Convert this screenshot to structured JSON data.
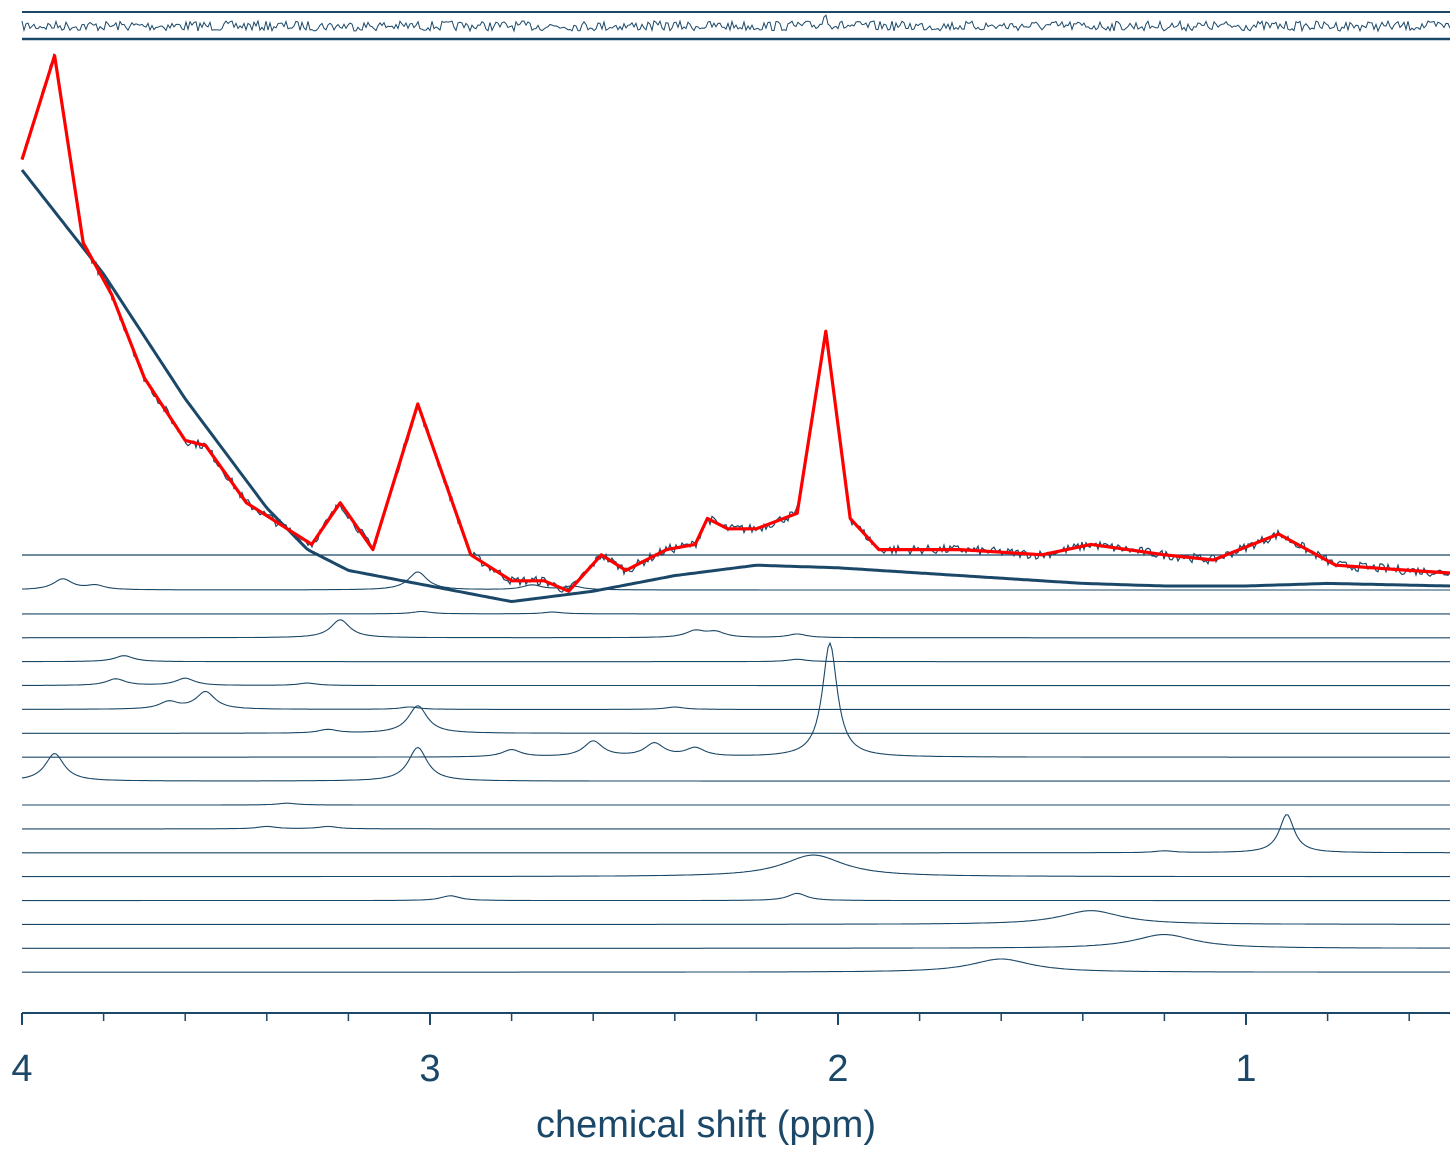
{
  "chart_data": {
    "type": "line",
    "title": "",
    "xlabel": "chemical shift (ppm)",
    "ylabel": "",
    "x_axis": {
      "reversed": true,
      "xlim": [
        4.0,
        0.5
      ],
      "major_ticks": [
        4,
        3,
        2,
        1
      ],
      "major_tick_labels": [
        "4",
        "3",
        "2",
        "1"
      ],
      "minor_ticks": [
        3.8,
        3.6,
        3.4,
        3.2,
        2.8,
        2.6,
        2.4,
        2.2,
        1.8,
        1.6,
        1.4,
        1.2,
        0.8,
        0.6
      ]
    },
    "grid": false,
    "legend": "none",
    "colors": {
      "fit": "#ff0000",
      "data": "#1b4868",
      "baseline": "#1b4868",
      "components": "#1b4868",
      "text": "#1b4868"
    },
    "residual_panel": {
      "description_visible": false,
      "peaks": [
        {
          "ppm": 2.03,
          "height": 0.6
        }
      ]
    },
    "main_panel": {
      "baseline": {
        "points": [
          [
            4.0,
            1.0
          ],
          [
            3.8,
            0.8
          ],
          [
            3.6,
            0.56
          ],
          [
            3.4,
            0.35
          ],
          [
            3.3,
            0.27
          ],
          [
            3.2,
            0.23
          ],
          [
            3.0,
            0.2
          ],
          [
            2.8,
            0.17
          ],
          [
            2.6,
            0.19
          ],
          [
            2.4,
            0.22
          ],
          [
            2.2,
            0.24
          ],
          [
            2.0,
            0.235
          ],
          [
            1.8,
            0.225
          ],
          [
            1.6,
            0.215
          ],
          [
            1.4,
            0.205
          ],
          [
            1.2,
            0.2
          ],
          [
            1.0,
            0.2
          ],
          [
            0.8,
            0.205
          ],
          [
            0.5,
            0.2
          ]
        ]
      },
      "fit": {
        "points": [
          [
            4.0,
            1.02
          ],
          [
            3.92,
            1.22
          ],
          [
            3.85,
            0.86
          ],
          [
            3.78,
            0.76
          ],
          [
            3.7,
            0.6
          ],
          [
            3.6,
            0.48
          ],
          [
            3.55,
            0.47
          ],
          [
            3.45,
            0.36
          ],
          [
            3.35,
            0.31
          ],
          [
            3.29,
            0.28
          ],
          [
            3.22,
            0.36
          ],
          [
            3.14,
            0.27
          ],
          [
            3.03,
            0.55
          ],
          [
            2.9,
            0.26
          ],
          [
            2.8,
            0.21
          ],
          [
            2.72,
            0.21
          ],
          [
            2.66,
            0.19
          ],
          [
            2.58,
            0.26
          ],
          [
            2.52,
            0.23
          ],
          [
            2.42,
            0.27
          ],
          [
            2.35,
            0.28
          ],
          [
            2.32,
            0.33
          ],
          [
            2.27,
            0.31
          ],
          [
            2.2,
            0.31
          ],
          [
            2.1,
            0.34
          ],
          [
            2.03,
            0.69
          ],
          [
            1.97,
            0.33
          ],
          [
            1.9,
            0.27
          ],
          [
            1.7,
            0.27
          ],
          [
            1.5,
            0.26
          ],
          [
            1.38,
            0.28
          ],
          [
            1.2,
            0.26
          ],
          [
            1.08,
            0.25
          ],
          [
            0.92,
            0.3
          ],
          [
            0.78,
            0.24
          ],
          [
            0.6,
            0.23
          ],
          [
            0.5,
            0.225
          ]
        ]
      }
    },
    "component_series": [
      {
        "peaks": [
          {
            "ppm": 3.9,
            "height": 0.9
          },
          {
            "ppm": 3.82,
            "height": 0.35
          },
          {
            "ppm": 3.03,
            "height": 1.5
          },
          {
            "ppm": 2.75,
            "height": 0.4
          },
          {
            "ppm": 2.65,
            "height": 0.3
          }
        ]
      },
      {
        "peaks": [
          {
            "ppm": 3.02,
            "height": 0.2
          },
          {
            "ppm": 2.7,
            "height": 0.15
          }
        ]
      },
      {
        "peaks": [
          {
            "ppm": 3.22,
            "height": 1.5
          },
          {
            "ppm": 2.35,
            "height": 0.55
          },
          {
            "ppm": 2.3,
            "height": 0.45
          },
          {
            "ppm": 2.1,
            "height": 0.3
          }
        ]
      },
      {
        "peaks": [
          {
            "ppm": 3.75,
            "height": 0.5
          },
          {
            "ppm": 2.1,
            "height": 0.2
          }
        ]
      },
      {
        "peaks": [
          {
            "ppm": 3.77,
            "height": 0.55
          },
          {
            "ppm": 3.6,
            "height": 0.6
          },
          {
            "ppm": 3.3,
            "height": 0.2
          }
        ]
      },
      {
        "peaks": [
          {
            "ppm": 3.55,
            "height": 1.45
          },
          {
            "ppm": 3.64,
            "height": 0.6
          },
          {
            "ppm": 3.05,
            "height": 0.2
          },
          {
            "ppm": 2.4,
            "height": 0.2
          }
        ]
      },
      {
        "peaks": [
          {
            "ppm": 3.03,
            "height": 2.3
          },
          {
            "ppm": 3.25,
            "height": 0.3
          }
        ]
      },
      {
        "peaks": [
          {
            "ppm": 2.02,
            "height": 9.5
          },
          {
            "ppm": 2.6,
            "height": 1.3
          },
          {
            "ppm": 2.45,
            "height": 1.1
          },
          {
            "ppm": 2.35,
            "height": 0.7
          },
          {
            "ppm": 2.8,
            "height": 0.6
          }
        ]
      },
      {
        "peaks": [
          {
            "ppm": 3.92,
            "height": 2.3
          },
          {
            "ppm": 3.03,
            "height": 2.8
          }
        ]
      },
      {
        "peaks": [
          {
            "ppm": 3.35,
            "height": 0.15
          }
        ]
      },
      {
        "peaks": [
          {
            "ppm": 3.4,
            "height": 0.2
          },
          {
            "ppm": 3.25,
            "height": 0.2
          }
        ]
      },
      {
        "peaks": [
          {
            "ppm": 0.9,
            "height": 3.2
          },
          {
            "ppm": 1.2,
            "height": 0.15
          }
        ]
      },
      {
        "peaks": [
          {
            "ppm": 2.06,
            "height": 1.8
          }
        ]
      },
      {
        "peaks": [
          {
            "ppm": 2.95,
            "height": 0.4
          },
          {
            "ppm": 2.1,
            "height": 0.6
          }
        ]
      },
      {
        "peaks": [
          {
            "ppm": 1.38,
            "height": 1.15
          }
        ]
      },
      {
        "peaks": [
          {
            "ppm": 1.2,
            "height": 1.15
          }
        ]
      },
      {
        "peaks": [
          {
            "ppm": 1.6,
            "height": 1.1
          }
        ]
      }
    ]
  }
}
